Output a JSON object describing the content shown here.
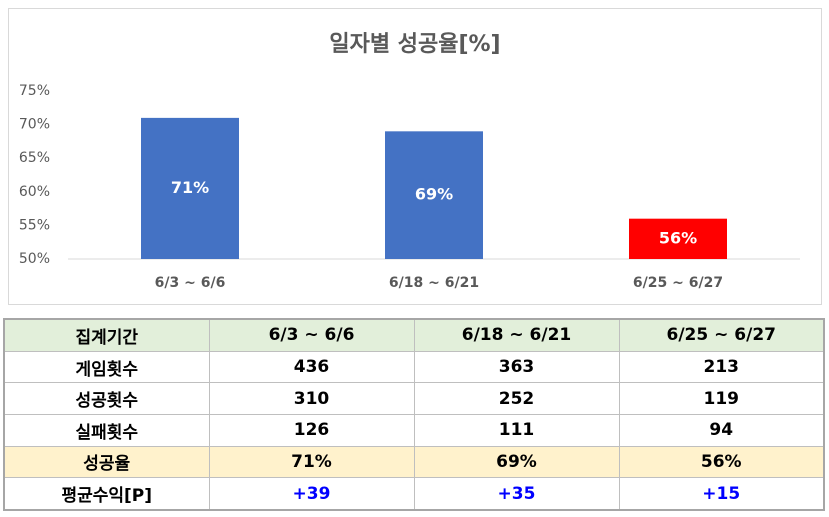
{
  "chart_data": {
    "type": "bar",
    "title": "일자별 성공율[%]",
    "categories": [
      "6/3 ~ 6/6",
      "6/18 ~ 6/21",
      "6/25 ~ 6/27"
    ],
    "values": [
      71,
      69,
      56
    ],
    "value_labels": [
      "71%",
      "69%",
      "56%"
    ],
    "colors": [
      "#4472c4",
      "#4472c4",
      "#ff0000"
    ],
    "ylim": [
      50,
      75
    ],
    "yticks": [
      {
        "value": 50,
        "label": "50%"
      },
      {
        "value": 55,
        "label": "55%"
      },
      {
        "value": 60,
        "label": "60%"
      },
      {
        "value": 65,
        "label": "65%"
      },
      {
        "value": 70,
        "label": "70%"
      },
      {
        "value": 75,
        "label": "75%"
      }
    ],
    "grid": false
  },
  "table": {
    "header": [
      "집계기간",
      "6/3 ~ 6/6",
      "6/18 ~ 6/21",
      "6/25 ~ 6/27"
    ],
    "rows": [
      [
        "게임횟수",
        436,
        363,
        213
      ],
      [
        "성공횟수",
        310,
        252,
        119
      ],
      [
        "실패횟수",
        126,
        111,
        94
      ],
      [
        "성공율",
        "71%",
        "69%",
        "56%"
      ],
      [
        "평균수익[P]",
        "+39",
        "+35",
        "+15"
      ]
    ]
  }
}
